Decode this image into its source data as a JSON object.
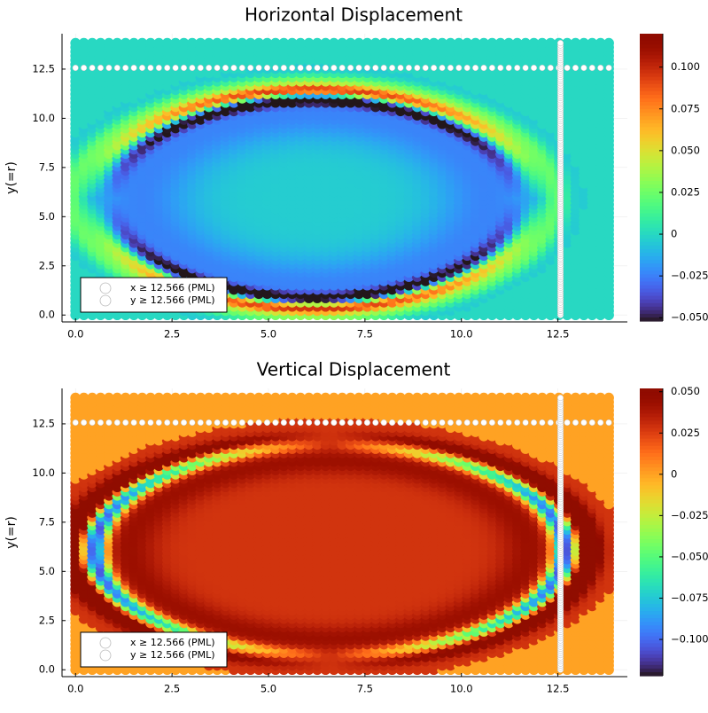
{
  "chart_data": [
    {
      "type": "heatmap",
      "panel": "top",
      "title": "Horizontal Displacement",
      "xlabel": "",
      "ylabel": "y(=r)",
      "xlim": [
        -0.35,
        14.3
      ],
      "ylim": [
        -0.35,
        14.3
      ],
      "xticks": [
        0.0,
        2.5,
        5.0,
        7.5,
        10.0,
        12.5
      ],
      "xtick_labels": [
        "0.0",
        "2.5",
        "5.0",
        "7.5",
        "10.0",
        "12.5"
      ],
      "yticks": [
        0.0,
        2.5,
        5.0,
        7.5,
        10.0,
        12.5
      ],
      "ytick_labels": [
        "0.0",
        "2.5",
        "5.0",
        "7.5",
        "10.0",
        "12.5"
      ],
      "grid_x": [
        0,
        13.82
      ],
      "grid_y": [
        0,
        13.82
      ],
      "grid_n": 65,
      "pml_boundary": 12.566,
      "pattern": "horizontal",
      "amplitude": 0.1,
      "colorbar": {
        "min": -0.052,
        "max": 0.12,
        "ticks": [
          -0.05,
          -0.025,
          0,
          0.025,
          0.05,
          0.075,
          0.1
        ],
        "tick_labels": [
          "−0.050",
          "−0.025",
          "0",
          "0.025",
          "0.050",
          "0.075",
          "0.100"
        ]
      },
      "legend": {
        "position": "bottom-left",
        "entries": [
          "x ≥ 12.566 (PML)",
          "y ≥ 12.566 (PML)"
        ]
      }
    },
    {
      "type": "heatmap",
      "panel": "bottom",
      "title": "Vertical Displacement",
      "xlabel": "",
      "ylabel": "y(=r)",
      "xlim": [
        -0.35,
        14.3
      ],
      "ylim": [
        -0.35,
        14.3
      ],
      "xticks": [
        0.0,
        2.5,
        5.0,
        7.5,
        10.0,
        12.5
      ],
      "xtick_labels": [
        "0.0",
        "2.5",
        "5.0",
        "7.5",
        "10.0",
        "12.5"
      ],
      "yticks": [
        0.0,
        2.5,
        5.0,
        7.5,
        10.0,
        12.5
      ],
      "ytick_labels": [
        "0.0",
        "2.5",
        "5.0",
        "7.5",
        "10.0",
        "12.5"
      ],
      "grid_x": [
        0,
        13.82
      ],
      "grid_y": [
        0,
        13.82
      ],
      "grid_n": 65,
      "pml_boundary": 12.566,
      "pattern": "vertical",
      "amplitude": 0.05,
      "colorbar": {
        "min": -0.122,
        "max": 0.052,
        "ticks": [
          -0.1,
          -0.075,
          -0.05,
          -0.025,
          0,
          0.025,
          0.05
        ],
        "tick_labels": [
          "−0.100",
          "−0.075",
          "−0.050",
          "−0.025",
          "0",
          "0.025",
          "0.050"
        ]
      },
      "legend": {
        "position": "bottom-left",
        "entries": [
          "x ≥ 12.566 (PML)",
          "y ≥ 12.566 (PML)"
        ]
      }
    }
  ]
}
